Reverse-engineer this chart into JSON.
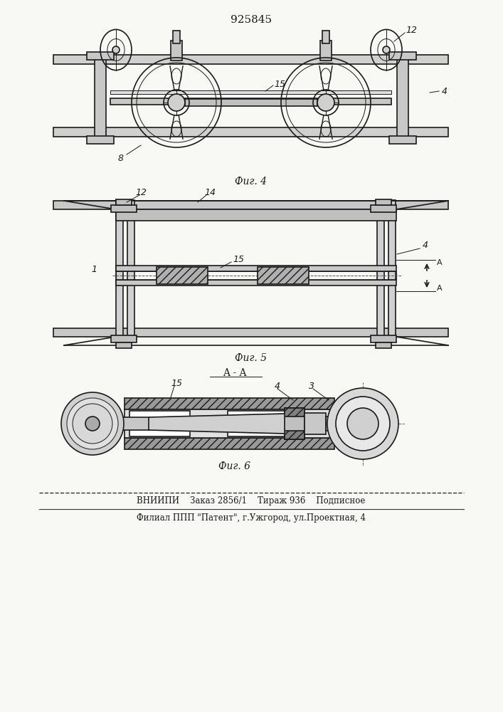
{
  "title": "925845",
  "bg_color": "#f8f8f5",
  "line_color": "#1a1a1a",
  "fig4_label": "Фиг. 4",
  "fig5_label": "Фиг. 5",
  "fig6_label": "Фиг. 6",
  "section_label": "A - A",
  "bottom_line1": "ВНИИПИ    Заказ 2856/1    Тираж 936    Подписное",
  "bottom_line2": "Филиал ППП \"Патент\", г.Ужгород, ул.Проектная, 4"
}
